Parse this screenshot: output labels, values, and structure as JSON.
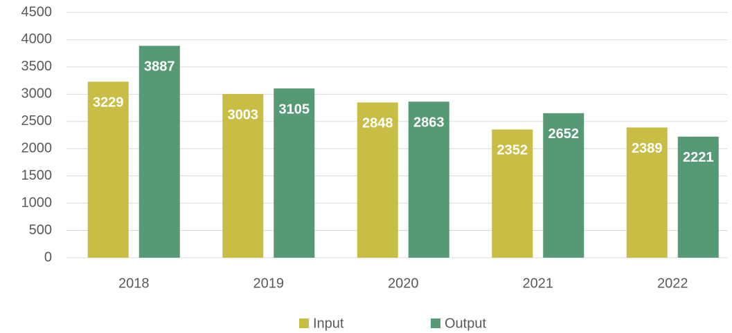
{
  "chart_data": {
    "type": "bar",
    "categories": [
      "2018",
      "2019",
      "2020",
      "2021",
      "2022"
    ],
    "series": [
      {
        "name": "Input",
        "color": "#c9be45",
        "values": [
          3229,
          3003,
          2848,
          2352,
          2389
        ]
      },
      {
        "name": "Output",
        "color": "#559a74",
        "values": [
          3887,
          3105,
          2863,
          2652,
          2221
        ]
      }
    ],
    "ylim": [
      0,
      4500
    ],
    "yticks": [
      0,
      500,
      1000,
      1500,
      2000,
      2500,
      3000,
      3500,
      4000,
      4500
    ],
    "grid": true,
    "legend": "bottom"
  }
}
